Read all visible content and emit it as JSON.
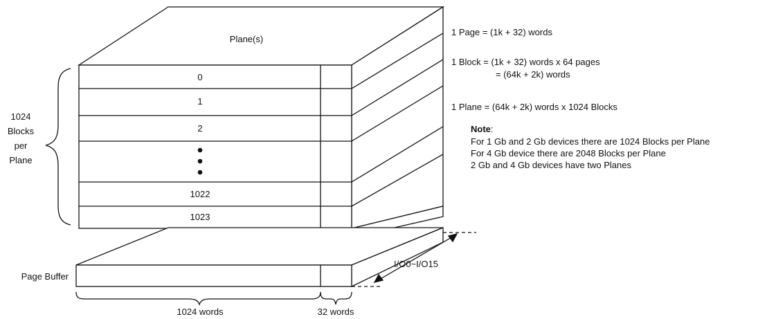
{
  "diagram": {
    "plane_label": "Plane(s)",
    "blocks": [
      "0",
      "1",
      "2",
      "1022",
      "1023"
    ],
    "blocks_brace_label": [
      "1024",
      "Blocks",
      "per",
      "Plane"
    ],
    "page_buffer_label": "Page Buffer",
    "words_main": "1024 words",
    "words_spare": "32 words",
    "io_label": "I/O0~I/O15"
  },
  "notes": {
    "page_eq": "1 Page = (1k + 32) words",
    "block_eq_1": "1 Block = (1k + 32) words x 64 pages",
    "block_eq_2": "= (64k + 2k) words",
    "plane_eq": "1 Plane = (64k + 2k) words x 1024 Blocks",
    "note_title": "Note",
    "note_colon": ":",
    "note_lines": [
      "For 1 Gb and 2 Gb devices there are 1024 Blocks per Plane",
      "For 4 Gb device there are 2048 Blocks per Plane",
      "2 Gb and 4 Gb devices have two Planes"
    ]
  }
}
